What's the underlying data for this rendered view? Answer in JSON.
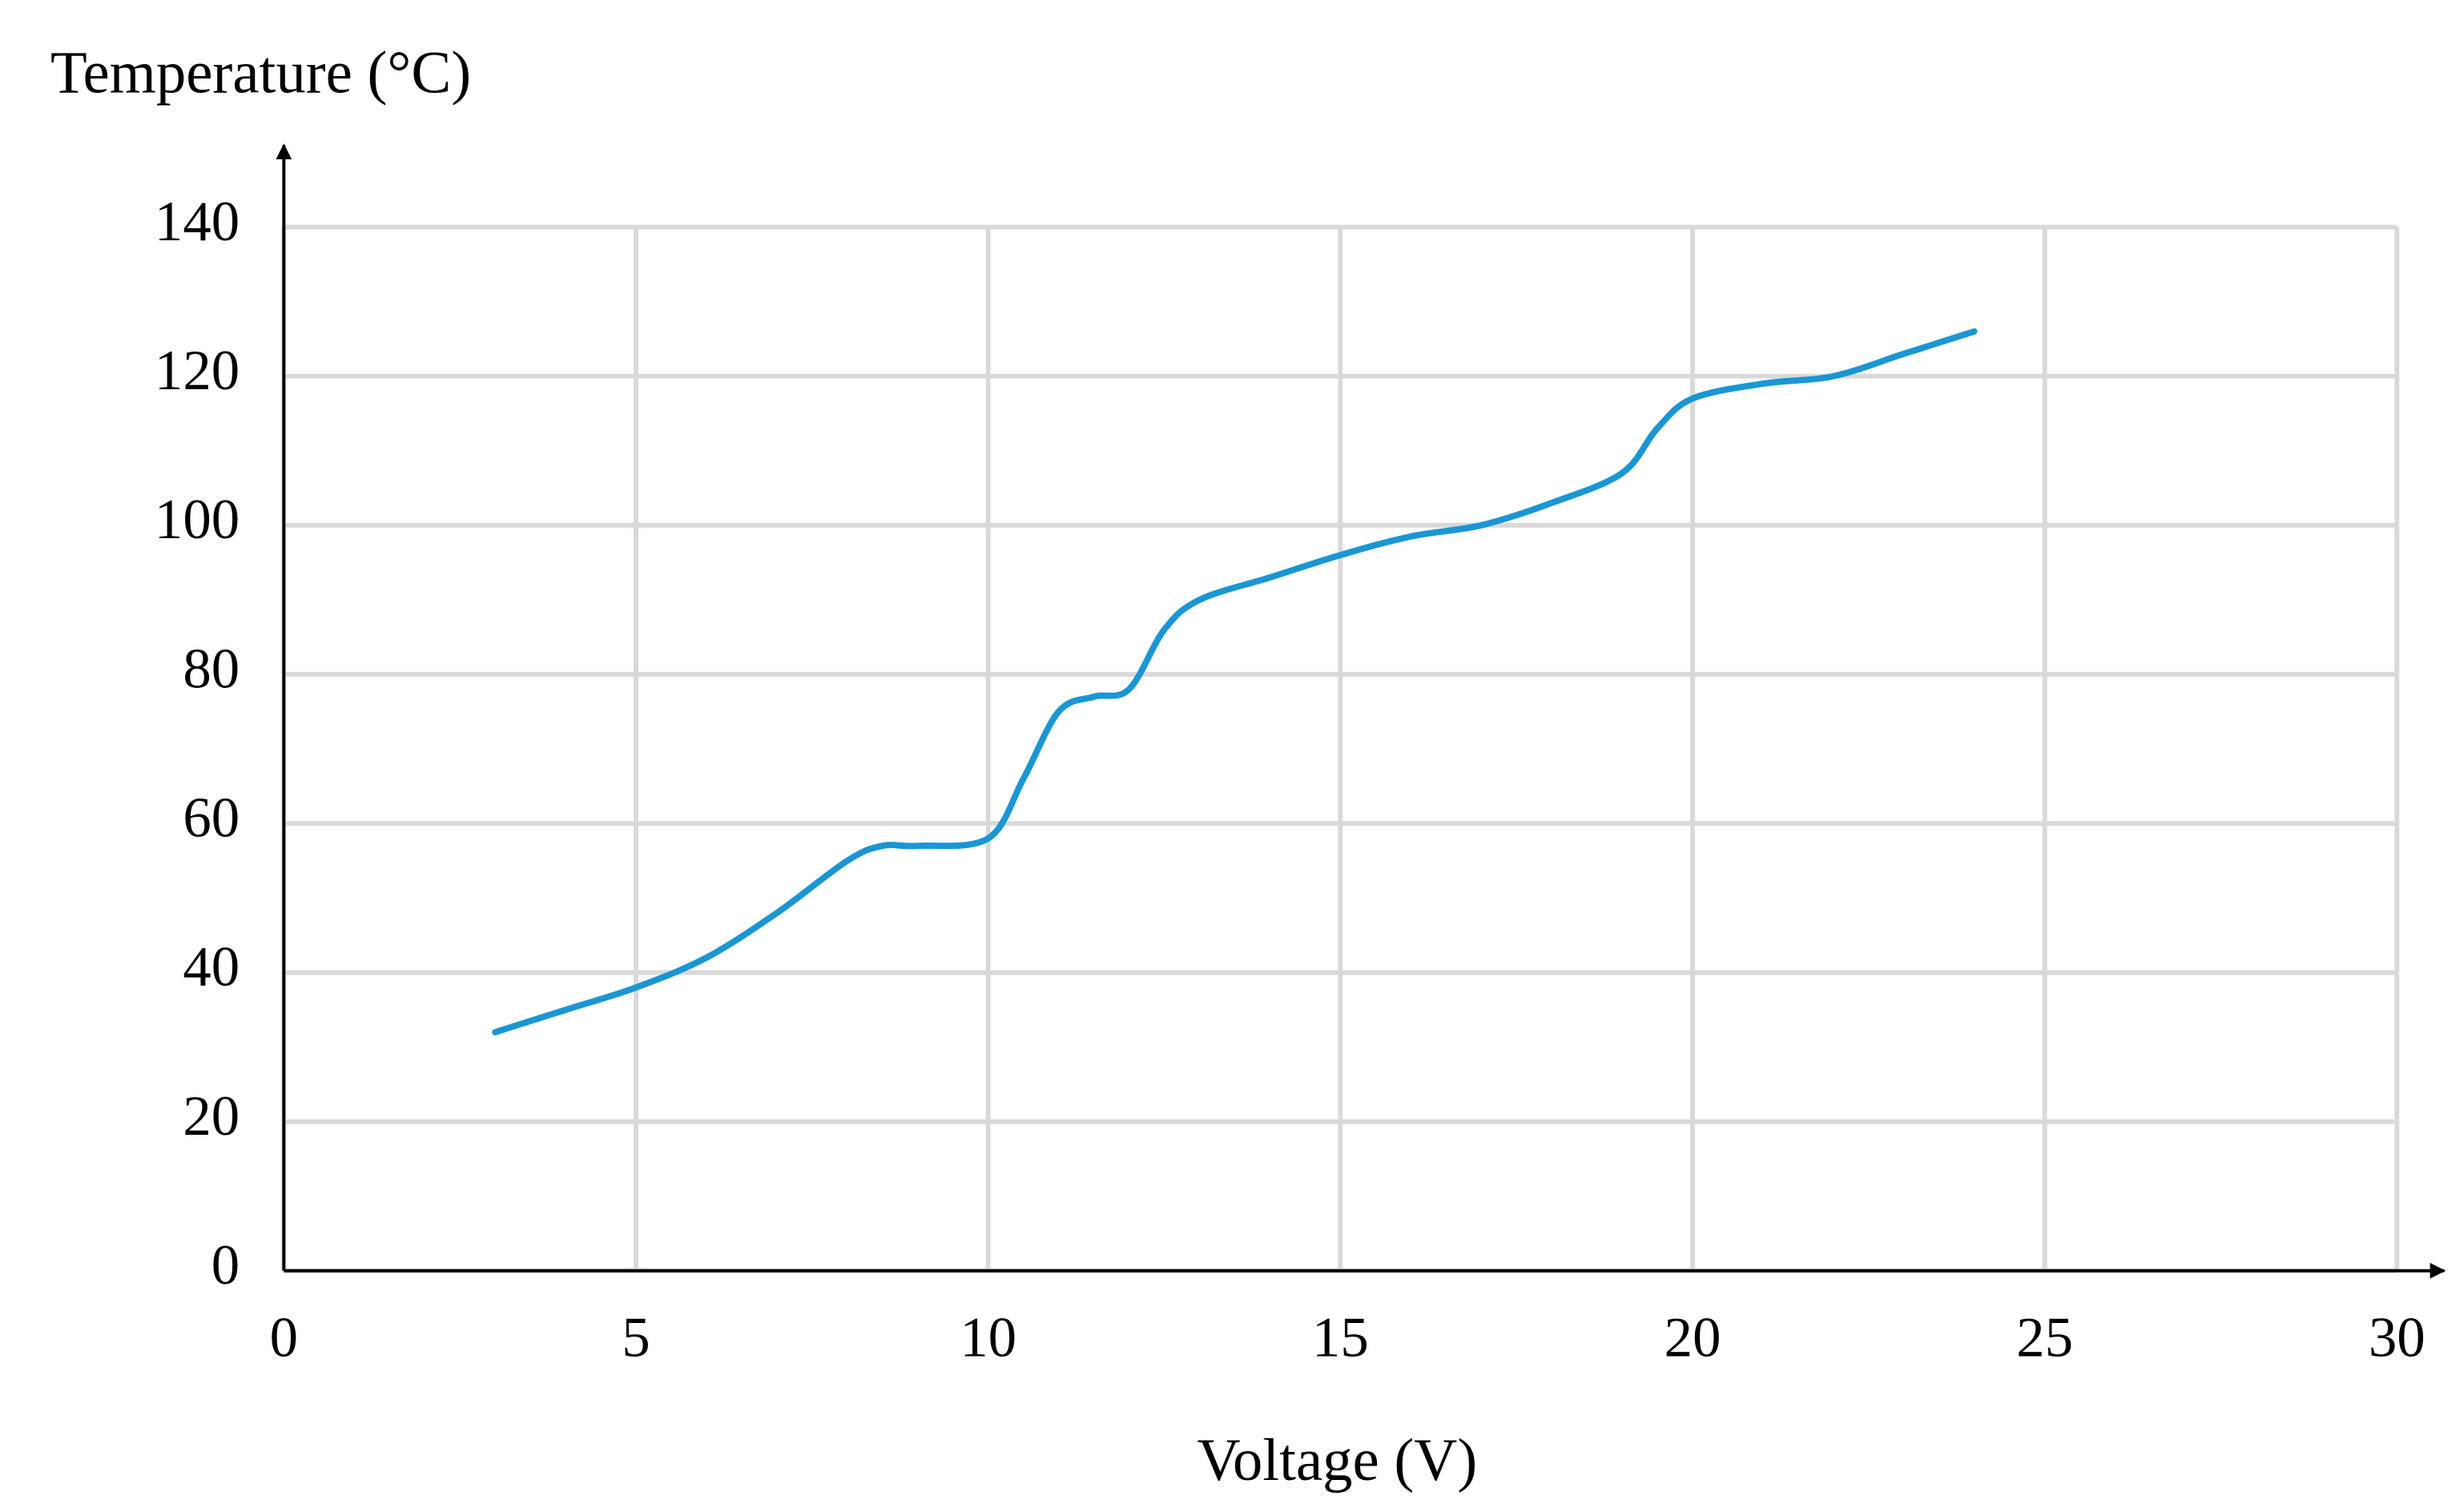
{
  "chart_data": {
    "type": "line",
    "x_label": "Voltage (V)",
    "y_label": "Temperature (°C)",
    "x": [
      3,
      4,
      5,
      6,
      7,
      8,
      8.5,
      9,
      10,
      10.5,
      11,
      11.5,
      12,
      12.5,
      13,
      14,
      15,
      16,
      17,
      18,
      19,
      19.5,
      20,
      21,
      22,
      23,
      24
    ],
    "series": [
      {
        "color": "#1a96d4",
        "values": [
          32,
          35,
          38,
          42,
          48,
          55,
          57,
          57,
          58,
          66,
          75,
          77,
          78,
          86,
          90,
          93,
          96,
          98.5,
          100,
          103,
          107,
          113,
          117,
          119,
          120,
          123,
          126
        ]
      }
    ],
    "xlim": [
      0,
      30
    ],
    "ylim": [
      0,
      140
    ],
    "xticks": [
      0,
      5,
      10,
      15,
      20,
      25,
      30
    ],
    "yticks": [
      0,
      20,
      40,
      60,
      80,
      100,
      120,
      140
    ],
    "grid": true
  }
}
